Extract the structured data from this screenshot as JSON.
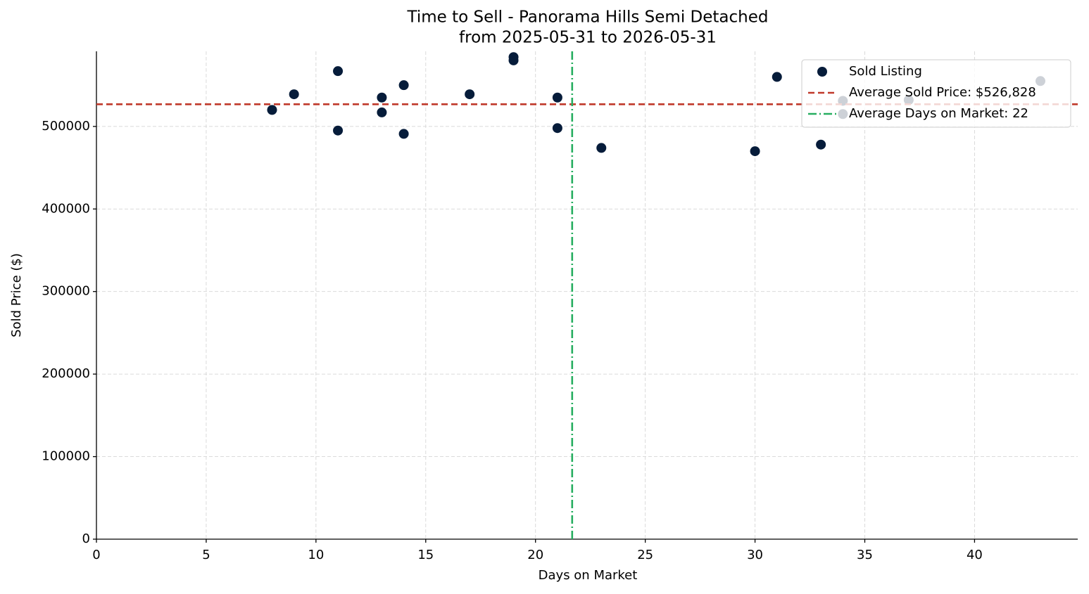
{
  "chart_data": {
    "type": "scatter",
    "title": "Time to Sell - Panorama Hills Semi Detached",
    "subtitle": "from 2025-05-31 to 2026-05-31",
    "x_label": "Days on Market",
    "y_label": "Sold Price ($)",
    "xlim": [
      0,
      44.7
    ],
    "ylim": [
      0,
      591000
    ],
    "xticks": [
      0,
      5,
      10,
      15,
      20,
      25,
      30,
      35,
      40
    ],
    "yticks": [
      0,
      100000,
      200000,
      300000,
      400000,
      500000
    ],
    "grid": true,
    "legend": "upper right",
    "series": [
      {
        "name": "Sold Listing",
        "color": "#061c3a",
        "x": [
          8,
          9,
          11,
          11,
          13,
          13,
          14,
          14,
          17,
          19,
          19,
          21,
          21,
          23,
          30,
          31,
          33,
          34,
          34,
          37,
          43
        ],
        "values": [
          520000,
          539000,
          567000,
          495000,
          535000,
          517000,
          550000,
          491000,
          539000,
          584000,
          580000,
          535000,
          498000,
          474000,
          470000,
          560000,
          478000,
          531000,
          515000,
          532000,
          555000
        ]
      }
    ],
    "reference_lines": [
      {
        "name": "Average Sold Price: $526,828",
        "axis": "y",
        "value": 526828,
        "color": "#c0392b",
        "style": "dashed"
      },
      {
        "name": "Average Days on Market: 22",
        "axis": "x",
        "value": 21.67,
        "color": "#27ae60",
        "style": "dashdot"
      }
    ]
  }
}
